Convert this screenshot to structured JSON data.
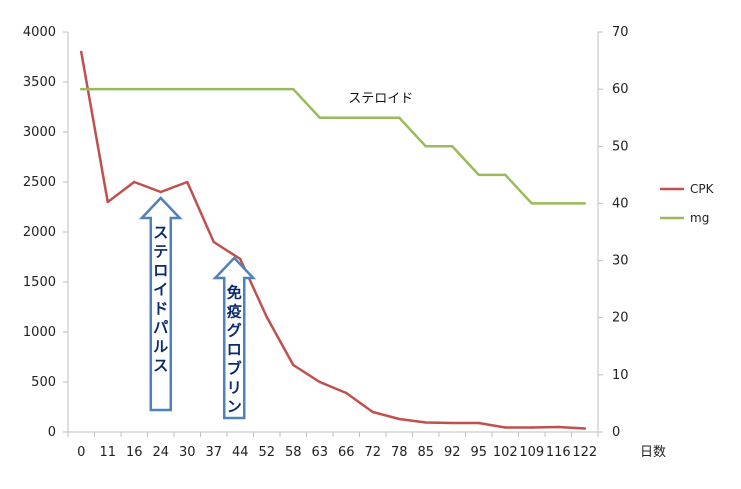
{
  "chart_data": {
    "type": "line",
    "categories": [
      "0",
      "11",
      "16",
      "24",
      "30",
      "37",
      "44",
      "52",
      "58",
      "63",
      "66",
      "72",
      "78",
      "85",
      "92",
      "95",
      "102",
      "109",
      "116",
      "122"
    ],
    "xlabel": "日数",
    "y_left": {
      "ylim": [
        0,
        4000
      ],
      "ticks": [
        "0",
        "500",
        "1000",
        "1500",
        "2000",
        "2500",
        "3000",
        "3500",
        "4000"
      ]
    },
    "y_right": {
      "ylim": [
        0,
        70
      ],
      "ticks": [
        "0",
        "10",
        "20",
        "30",
        "40",
        "50",
        "60",
        "70"
      ]
    },
    "gridlines": false,
    "legend": {
      "position": "right"
    },
    "series": [
      {
        "name": "CPK",
        "axis": "left",
        "color": "#c0504d",
        "values": [
          3800,
          2300,
          2500,
          2400,
          2500,
          1900,
          1730,
          1150,
          670,
          500,
          390,
          200,
          130,
          95,
          90,
          90,
          45,
          45,
          50,
          35
        ]
      },
      {
        "name": "mg",
        "axis": "right",
        "color": "#9bbb59",
        "values": [
          60,
          60,
          60,
          60,
          60,
          60,
          60,
          60,
          60,
          55,
          55,
          55,
          55,
          50,
          50,
          45,
          45,
          40,
          40,
          40
        ]
      }
    ],
    "annotations": [
      {
        "text": "ステロイド",
        "near_series": "mg",
        "at_category": "72"
      },
      {
        "text": "ステロイドパルス",
        "kind": "up-arrow",
        "at_category": "24"
      },
      {
        "text": "免疫グロブリン",
        "kind": "up-arrow",
        "at_category": "44"
      }
    ]
  }
}
